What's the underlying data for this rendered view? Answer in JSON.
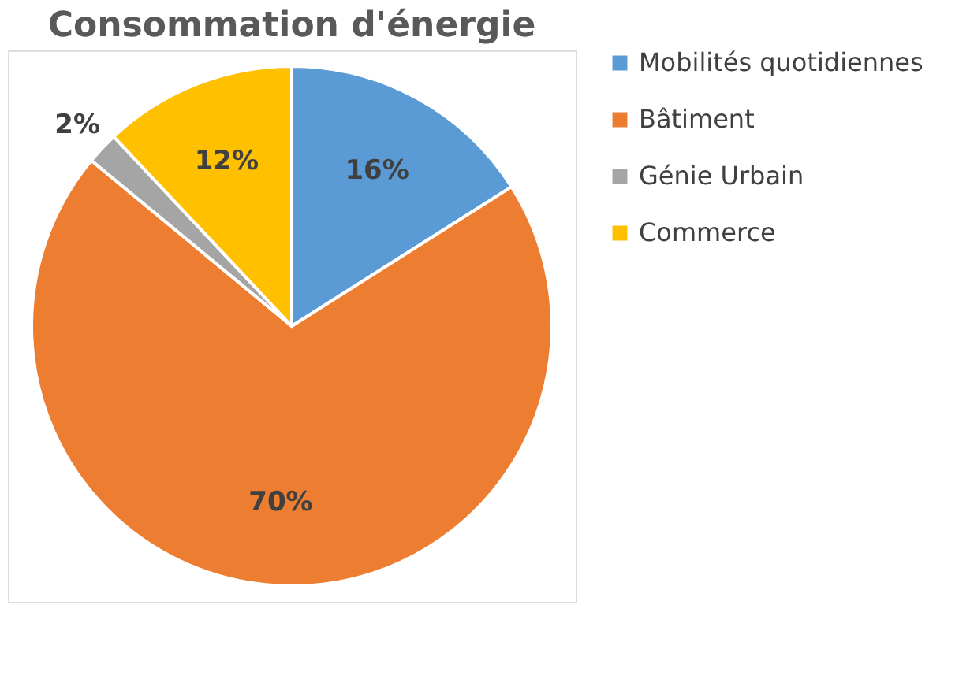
{
  "chart_data": {
    "type": "pie",
    "title": "Consommation d'énergie",
    "categories": [
      "Mobilités quotidiennes",
      "Bâtiment",
      "Génie Urbain",
      "Commerce"
    ],
    "values": [
      16,
      70,
      2,
      12
    ],
    "colors": [
      "#5b9bd5",
      "#ed7d31",
      "#a5a5a5",
      "#ffc000"
    ],
    "value_labels": [
      "16%",
      "70%",
      "2%",
      "12%"
    ],
    "legend": "right"
  }
}
